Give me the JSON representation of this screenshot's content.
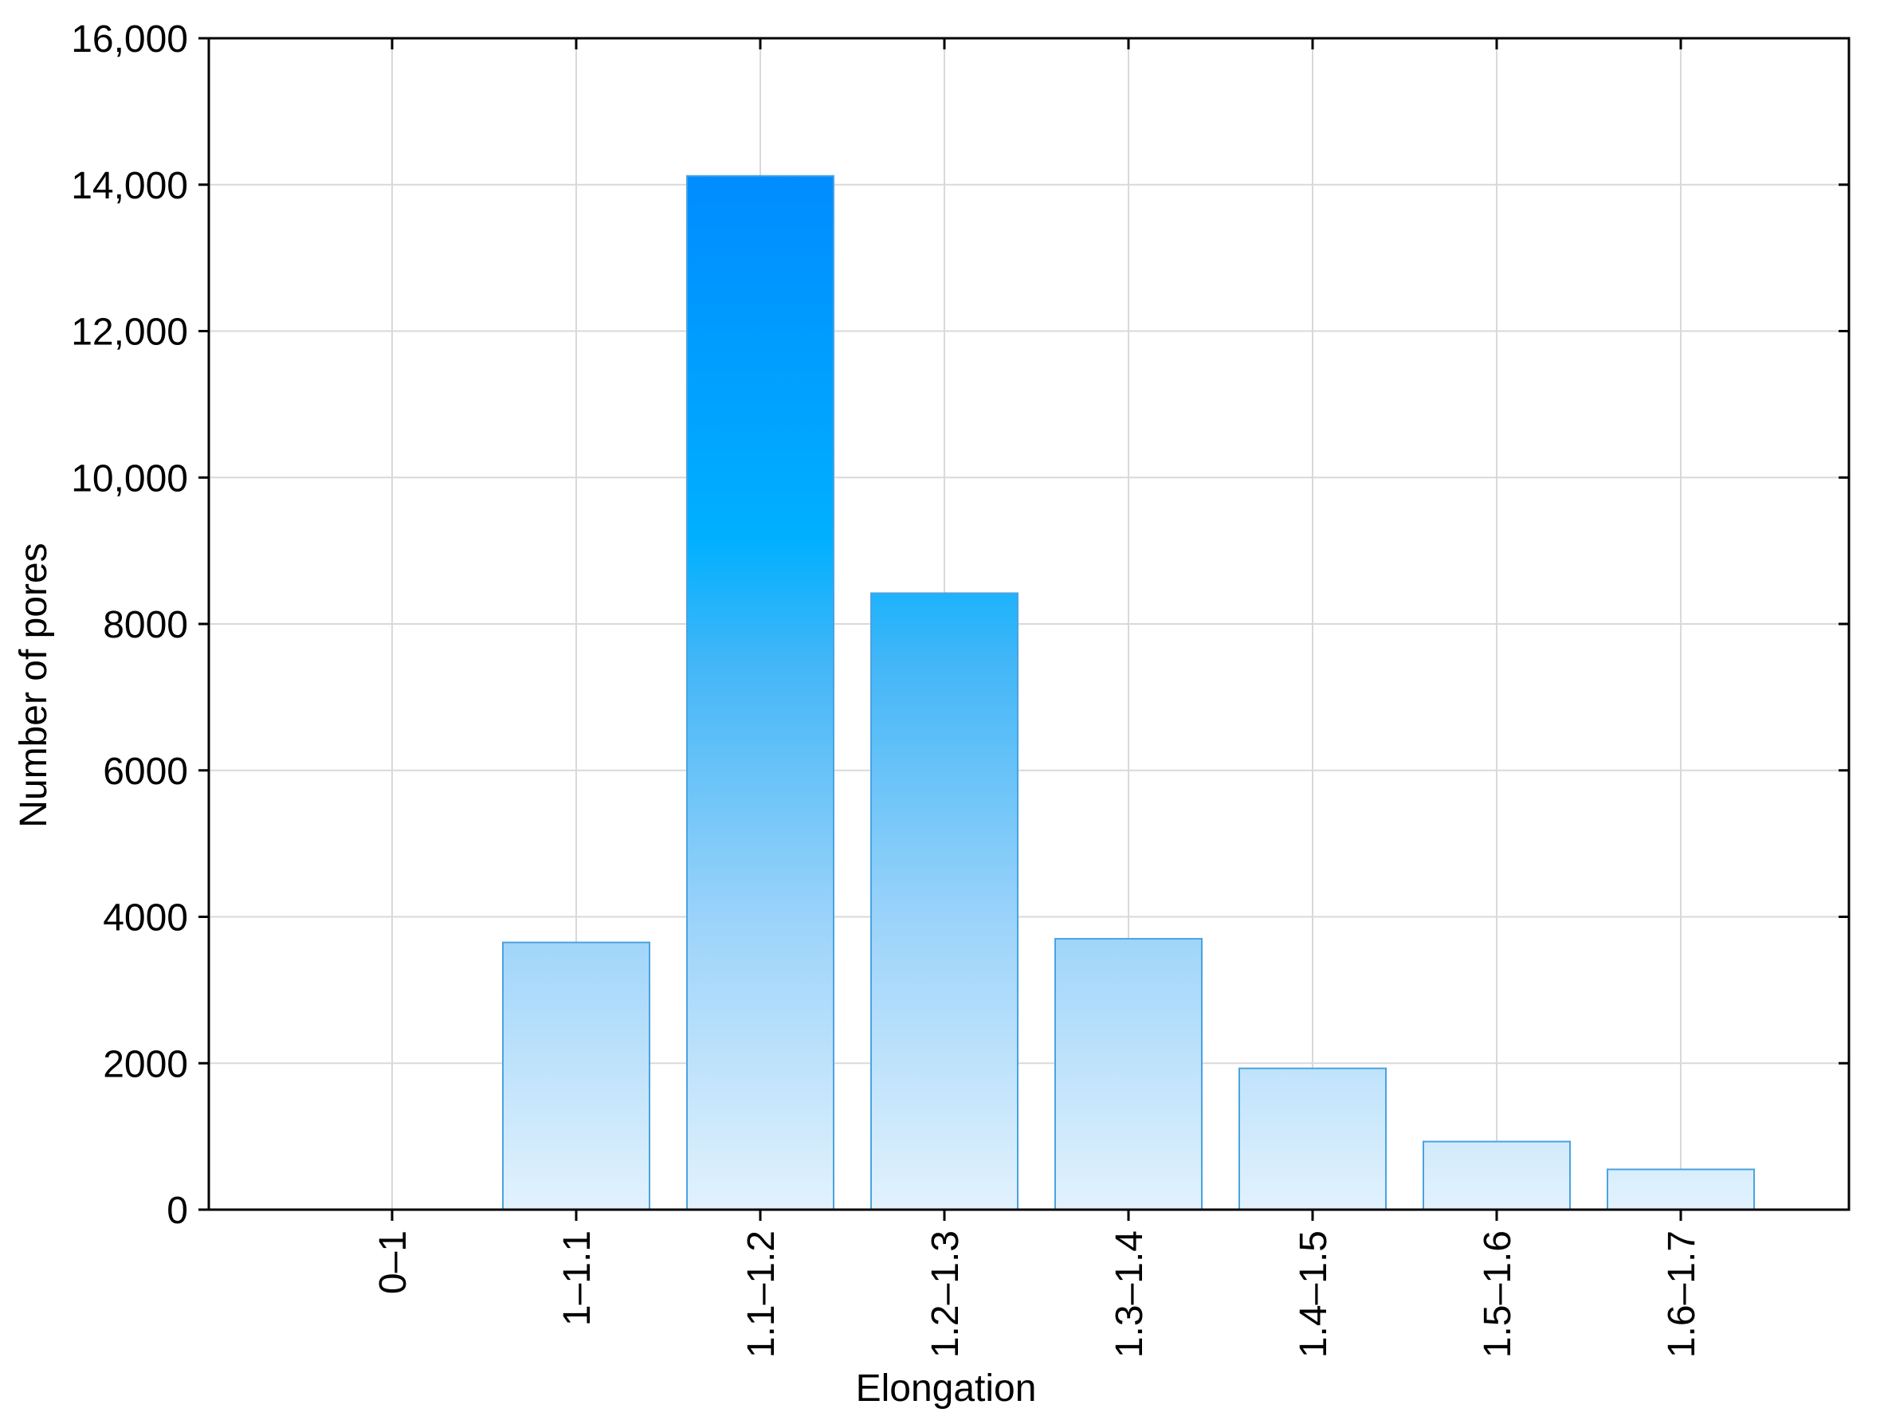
{
  "chart_data": {
    "type": "bar",
    "title": "",
    "xlabel": "Elongation",
    "ylabel": "Number of pores",
    "categories": [
      "0–1",
      "1–1.1",
      "1.1–1.2",
      "1.2–1.3",
      "1.3–1.4",
      "1.4–1.5",
      "1.5–1.6",
      "1.6–1.7"
    ],
    "values": [
      0,
      3650,
      14120,
      8420,
      3700,
      1930,
      930,
      550
    ],
    "ylim": [
      0,
      16000
    ],
    "yticks": [
      0,
      2000,
      4000,
      6000,
      8000,
      10000,
      12000,
      14000,
      16000
    ],
    "ytick_labels": [
      "0",
      "2000",
      "4000",
      "6000",
      "8000",
      "10,000",
      "12,000",
      "14,000",
      "16,000"
    ],
    "grid": true,
    "legend": "none",
    "colors": {
      "bar_top": "#008cff",
      "bar_mid": "#00b0ff",
      "bar_bottom": "#e2f2fd",
      "bar_edge": "#4aa3e0",
      "grid": "#d9d9d9",
      "axis": "#000000"
    }
  }
}
